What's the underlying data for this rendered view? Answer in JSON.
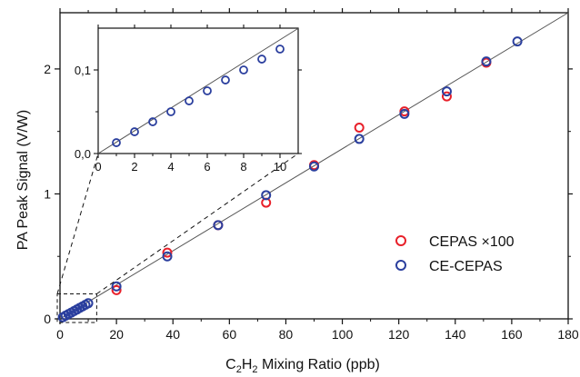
{
  "chart_data": {
    "type": "scatter",
    "xlabel": {
      "main": "C",
      "sub1": "2",
      "mid": "H",
      "sub2": "2",
      "tail": " Mixing Ratio (ppb)"
    },
    "ylabel": "PA Peak Signal (V/W)",
    "xlim": [
      0,
      180
    ],
    "ylim": [
      0,
      2.45
    ],
    "x_ticks": [
      0,
      20,
      40,
      60,
      80,
      100,
      120,
      140,
      160,
      180
    ],
    "x_tick_labels": [
      "0",
      "20",
      "40",
      "60",
      "80",
      "100",
      "120",
      "140",
      "160",
      "180"
    ],
    "y_ticks": [
      0,
      1,
      2
    ],
    "y_tick_labels": [
      "0",
      "1",
      "2"
    ],
    "fit_line": {
      "x": [
        0,
        180
      ],
      "y": [
        0,
        2.45
      ]
    },
    "series": [
      {
        "name": "CEPAS ×100",
        "color": "#e8202a",
        "marker": "open-circle",
        "x": [
          20,
          38,
          56,
          73,
          90,
          106,
          122,
          137,
          151
        ],
        "y": [
          0.23,
          0.53,
          0.75,
          0.93,
          1.23,
          1.53,
          1.66,
          1.78,
          2.05
        ]
      },
      {
        "name": "CE-CEPAS",
        "color": "#2b3f9e",
        "marker": "open-circle",
        "x": [
          1,
          2,
          3,
          4,
          5,
          6,
          7,
          8,
          9,
          10,
          20,
          38,
          56,
          73,
          90,
          106,
          122,
          137,
          151,
          162
        ],
        "y": [
          0.013,
          0.026,
          0.038,
          0.05,
          0.063,
          0.075,
          0.088,
          0.1,
          0.113,
          0.125,
          0.26,
          0.5,
          0.75,
          0.99,
          1.22,
          1.44,
          1.64,
          1.82,
          2.06,
          2.22
        ]
      }
    ],
    "legend_position": "right",
    "grid": false,
    "inset": {
      "xlim": [
        0,
        11
      ],
      "ylim": [
        0,
        0.15
      ],
      "x_ticks": [
        0,
        2,
        4,
        6,
        8,
        10
      ],
      "x_tick_labels": [
        "0",
        "2",
        "4",
        "6",
        "8",
        "10"
      ],
      "y_ticks": [
        0,
        0.1
      ],
      "y_tick_labels": [
        "0,0",
        "0,1"
      ],
      "zoom_region": {
        "x": [
          0,
          13
        ],
        "y": [
          0,
          0.2
        ]
      }
    }
  }
}
